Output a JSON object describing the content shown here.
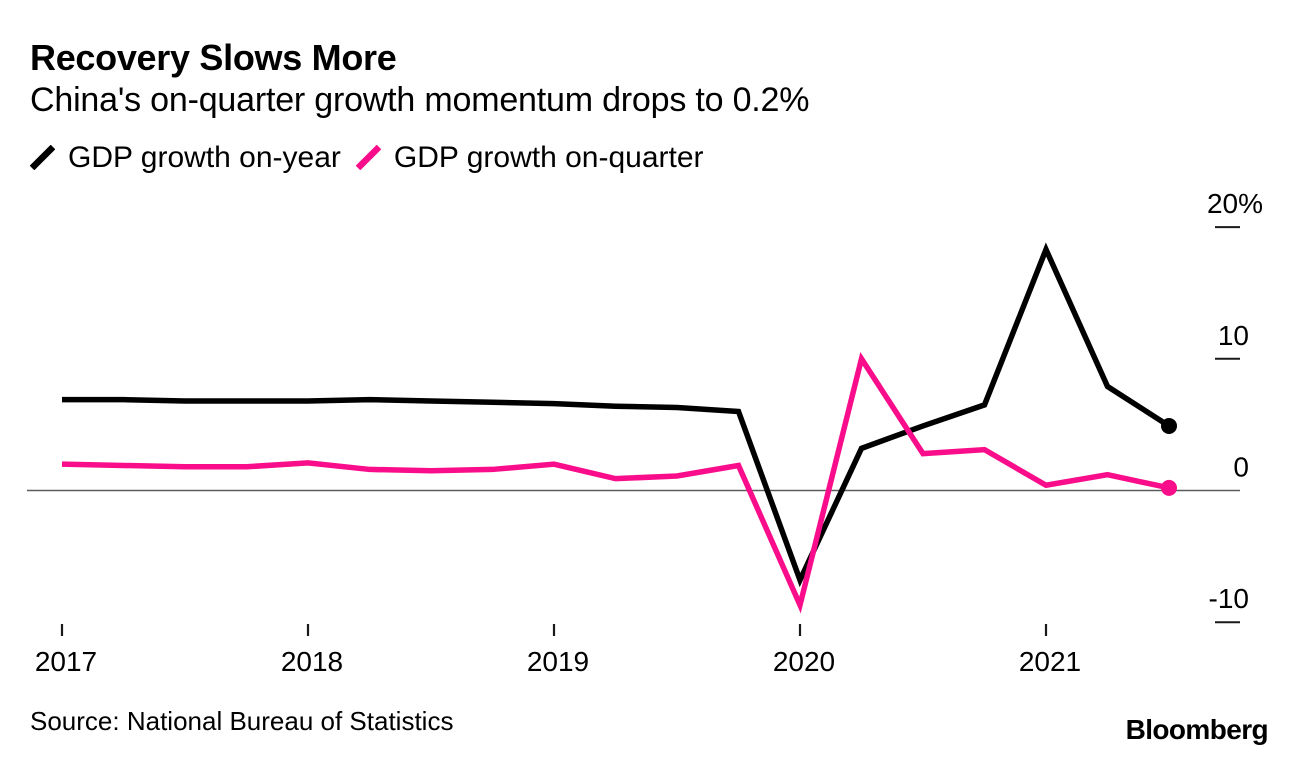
{
  "header": {
    "title": "Recovery Slows More",
    "subtitle": "China's on-quarter growth momentum drops to 0.2%"
  },
  "chart_data": {
    "type": "line",
    "title": "Recovery Slows More",
    "subtitle": "China's on-quarter growth momentum drops to 0.2%",
    "x_quarters": [
      "2017 Q1",
      "2017 Q2",
      "2017 Q3",
      "2017 Q4",
      "2018 Q1",
      "2018 Q2",
      "2018 Q3",
      "2018 Q4",
      "2019 Q1",
      "2019 Q2",
      "2019 Q3",
      "2019 Q4",
      "2020 Q1",
      "2020 Q2",
      "2020 Q3",
      "2020 Q4",
      "2021 Q1",
      "2021 Q2",
      "2021 Q3"
    ],
    "year_ticks": [
      {
        "label": "2017",
        "quarter_index": 0
      },
      {
        "label": "2018",
        "quarter_index": 4
      },
      {
        "label": "2019",
        "quarter_index": 8
      },
      {
        "label": "2020",
        "quarter_index": 12
      },
      {
        "label": "2021",
        "quarter_index": 16
      }
    ],
    "yticks": [
      {
        "value": 20,
        "label": "20%"
      },
      {
        "value": 10,
        "label": "10"
      },
      {
        "value": 0,
        "label": "0"
      },
      {
        "value": -10,
        "label": "-10"
      }
    ],
    "ylim": [
      -13,
      22
    ],
    "ylabel": "",
    "xlabel": "",
    "grid": "off",
    "legend_position": "top-left",
    "axis_color": "#5c5c5c",
    "background": "#ffffff",
    "series": [
      {
        "name": "GDP growth on-year",
        "color": "#000000",
        "values": [
          6.9,
          6.9,
          6.8,
          6.8,
          6.8,
          6.9,
          6.8,
          6.7,
          6.6,
          6.4,
          6.3,
          6.0,
          -6.8,
          3.2,
          4.9,
          6.5,
          18.3,
          7.9,
          4.9
        ]
      },
      {
        "name": "GDP growth on-quarter",
        "color": "#f90d8b",
        "values": [
          2.0,
          1.9,
          1.8,
          1.8,
          2.1,
          1.6,
          1.5,
          1.6,
          2.0,
          0.9,
          1.1,
          1.9,
          -8.7,
          10.0,
          2.8,
          3.1,
          0.4,
          1.2,
          0.2
        ]
      }
    ]
  },
  "footer": {
    "source": "Source: National Bureau of Statistics",
    "brand": "Bloomberg"
  }
}
